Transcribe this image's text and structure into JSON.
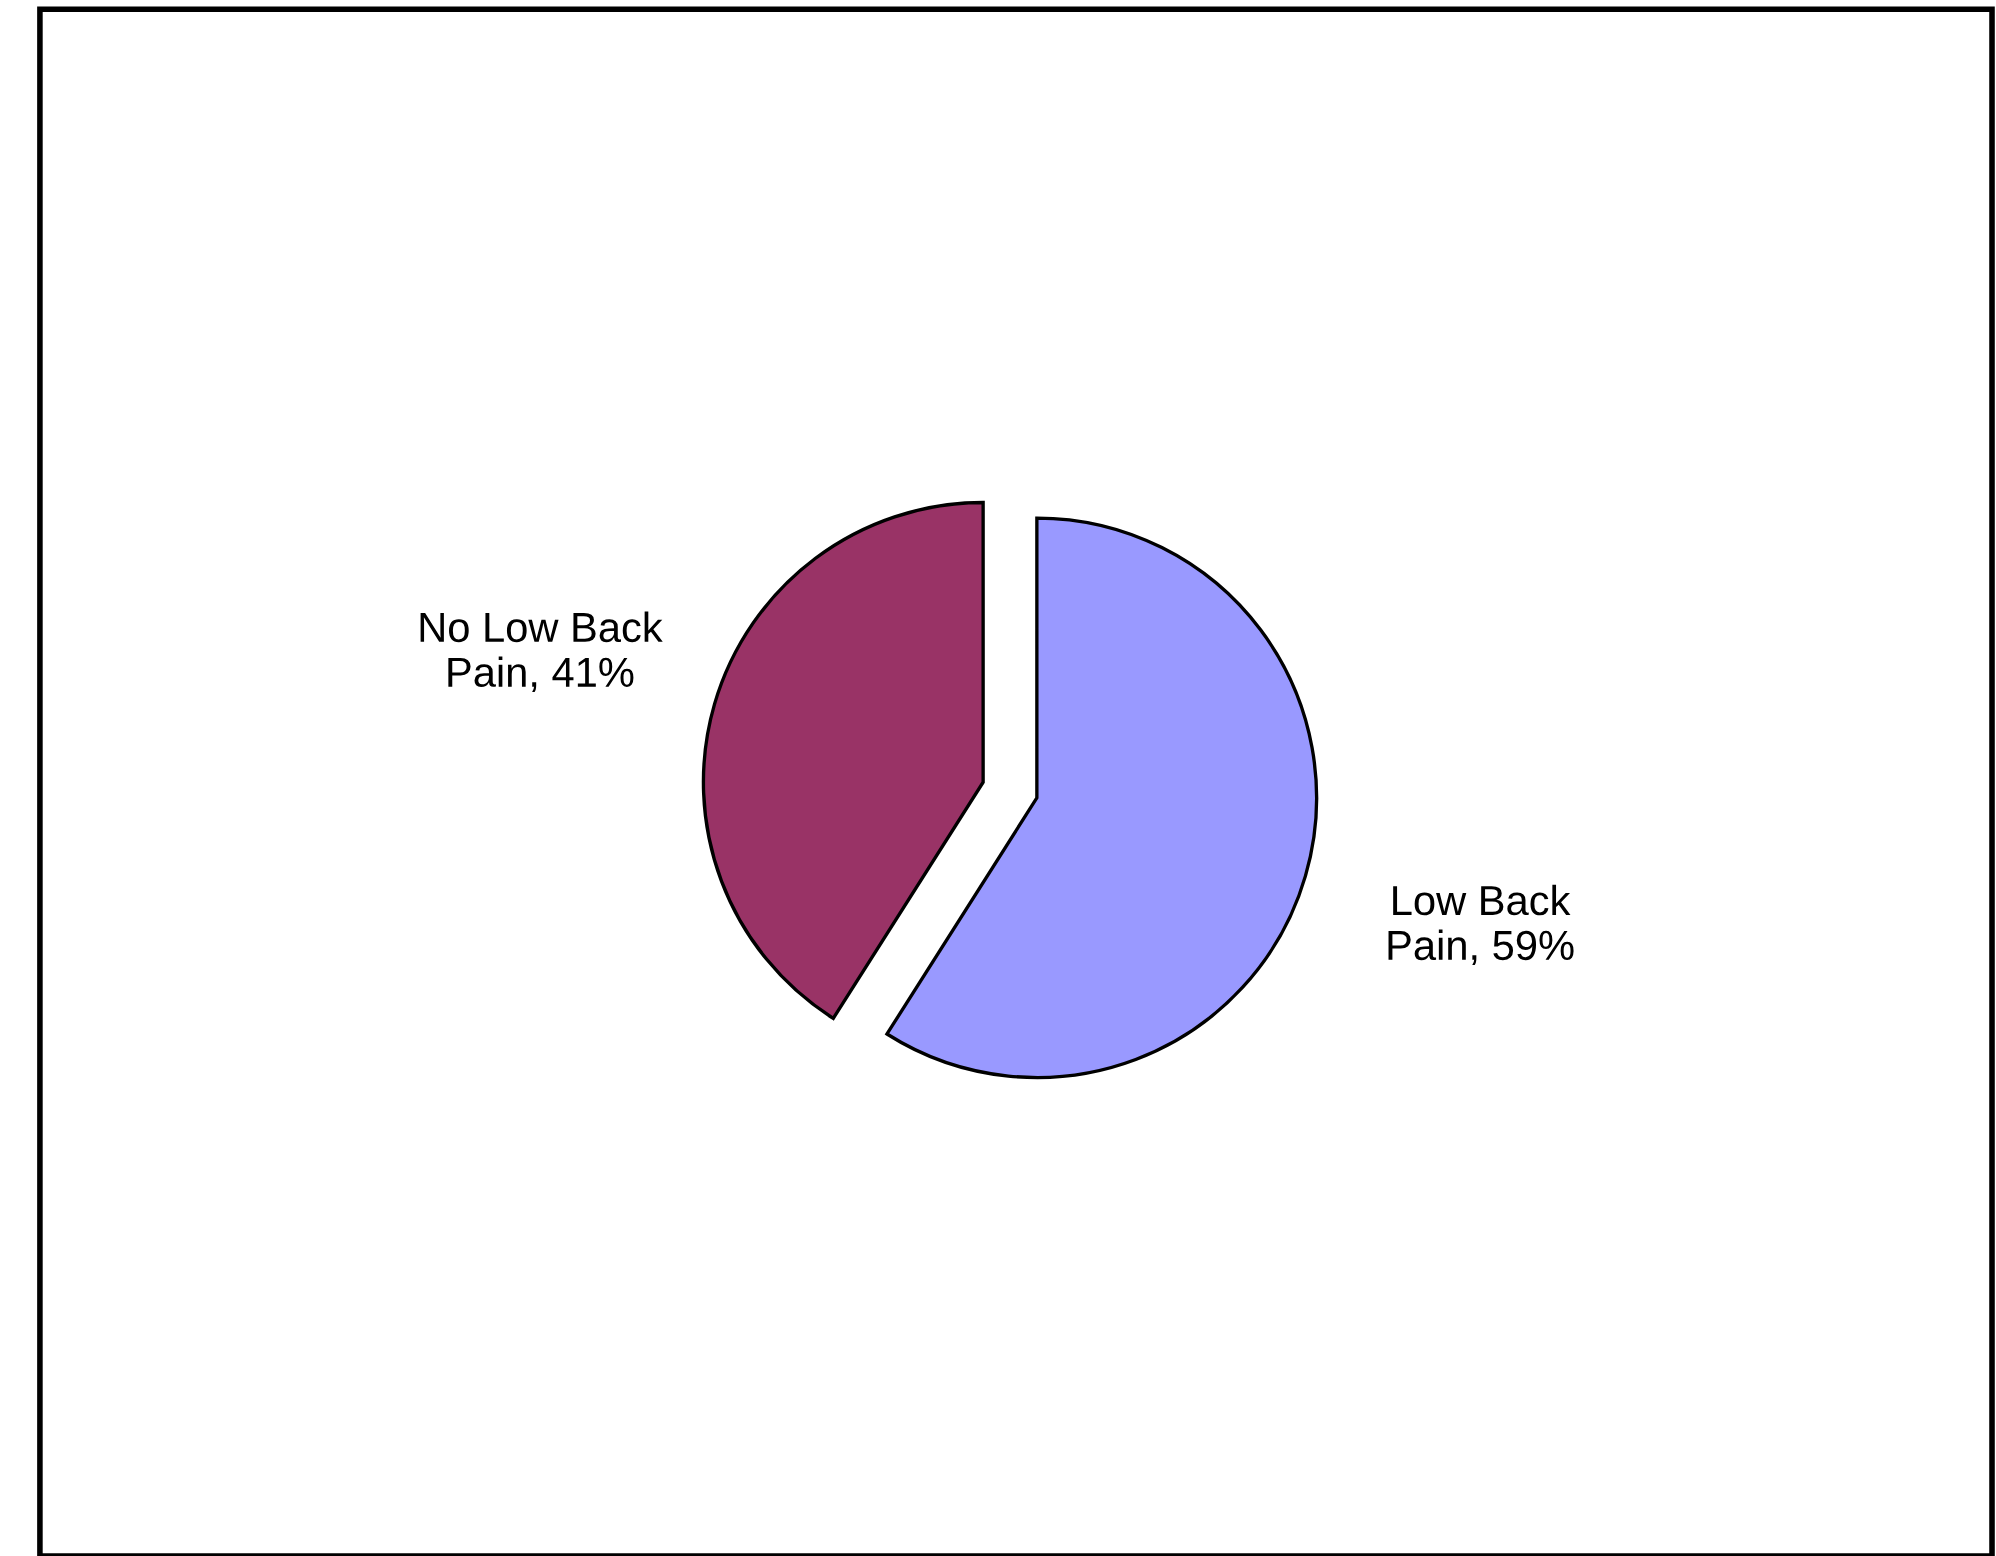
{
  "chart_data": {
    "type": "pie",
    "categories": [
      "Low Back Pain",
      "No Low Back Pain"
    ],
    "values": [
      59,
      41
    ],
    "value_labels": [
      "59%",
      "41%"
    ],
    "colors": [
      "#9999ff",
      "#993366"
    ],
    "legend": false
  }
}
